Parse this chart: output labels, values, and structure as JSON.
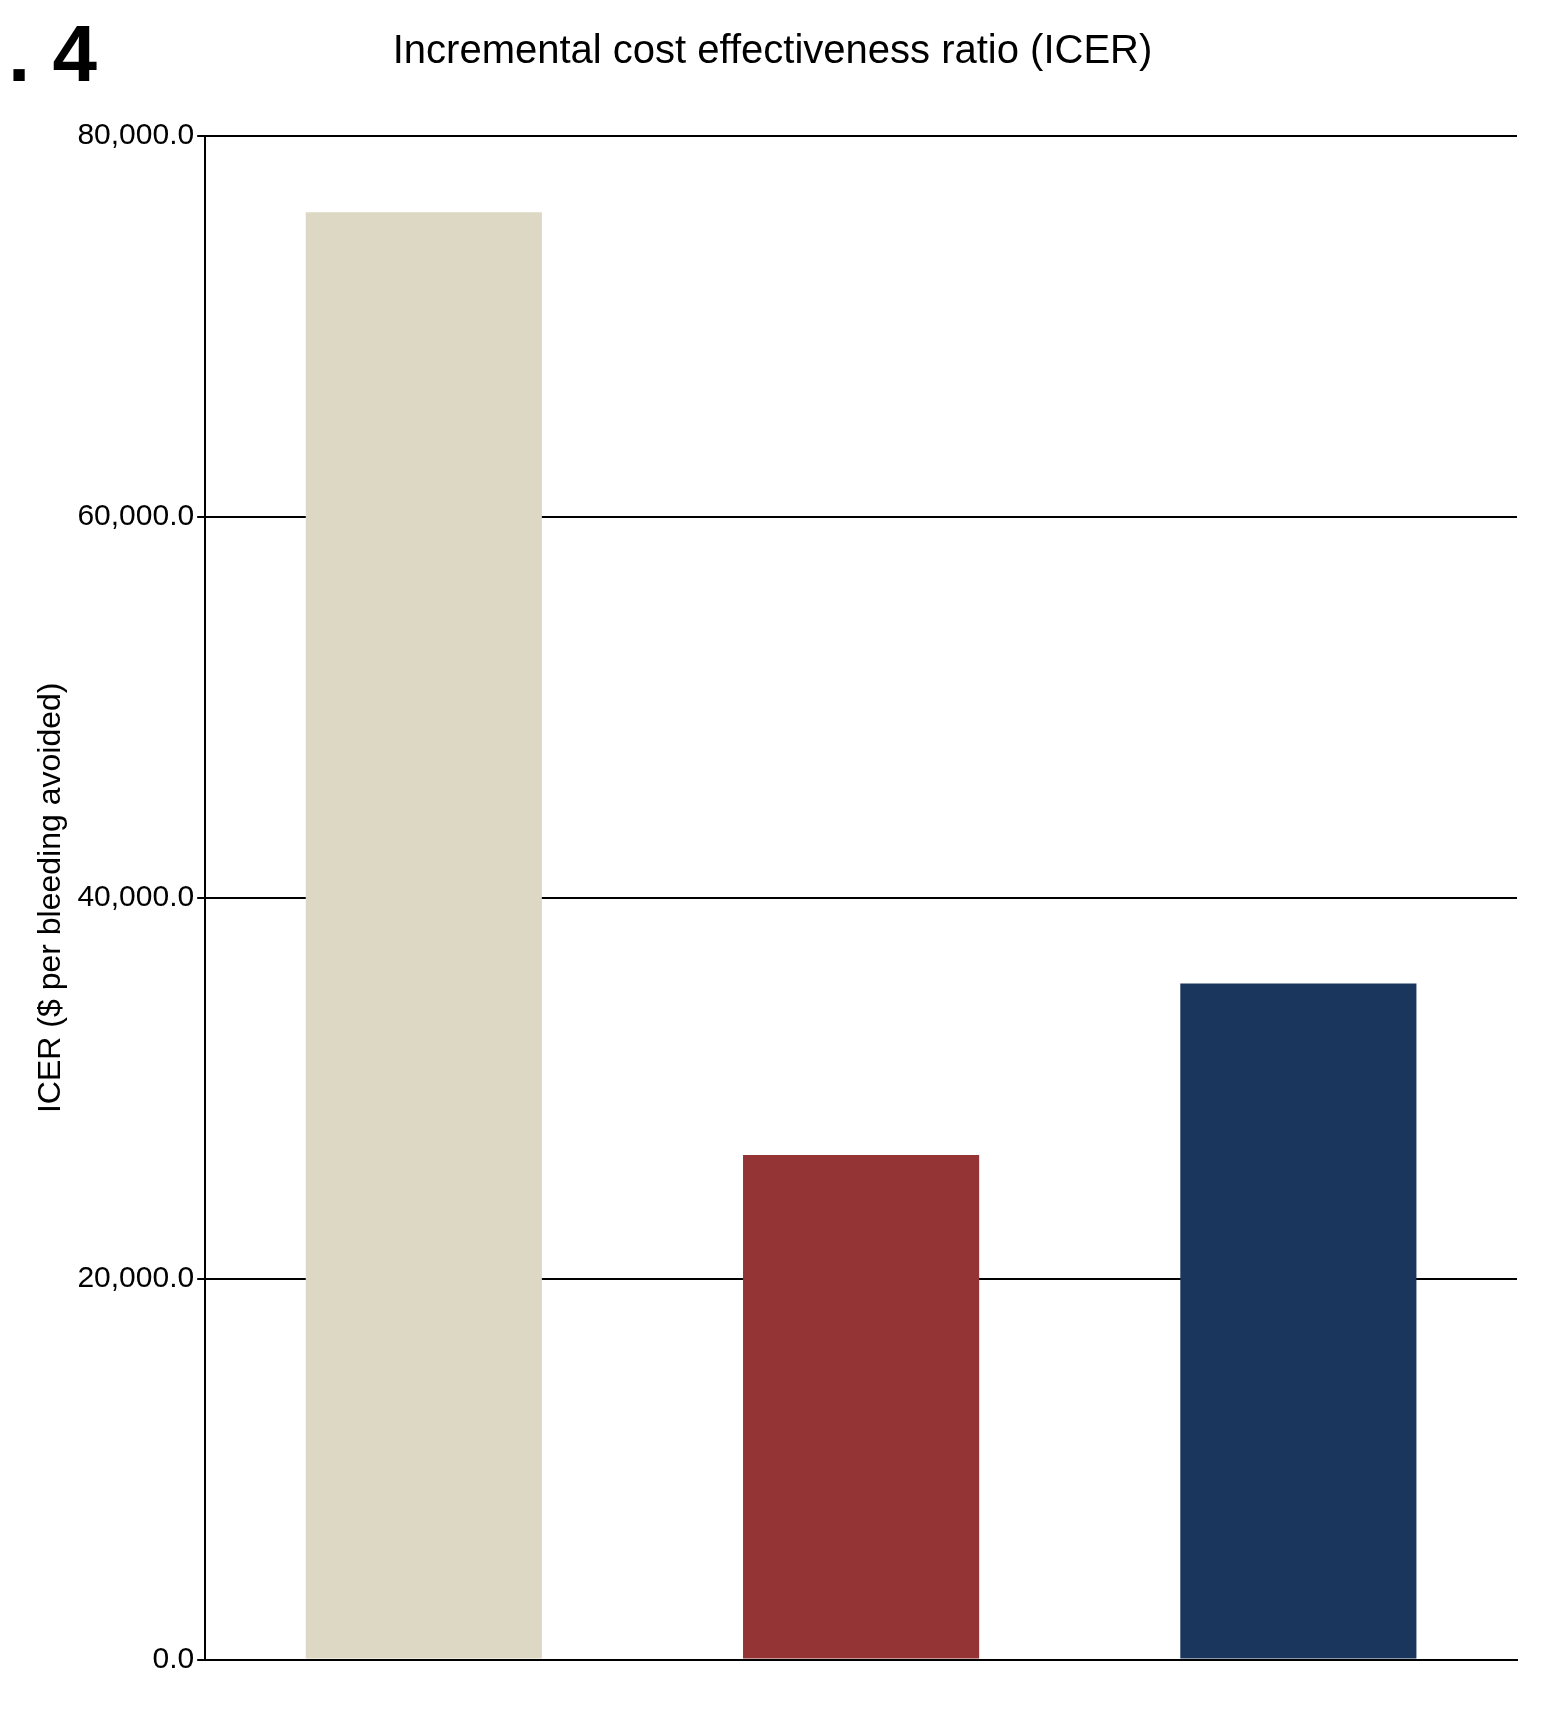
{
  "chart_data": {
    "type": "bar",
    "title": "Incremental cost effectiveness ratio (ICER)",
    "ylabel": "ICER ($ per bleeding avoided)",
    "annotations": [
      ". 4"
    ],
    "categories": [
      null,
      null,
      null
    ],
    "values": [
      76000,
      26500,
      35500
    ],
    "colors": [
      "#ddd8c4",
      "#943434",
      "#1a365d"
    ],
    "ylim": [
      0,
      80000
    ],
    "yticks": [
      {
        "value": 0,
        "label": "0.0"
      },
      {
        "value": 20000,
        "label": "20,000.0"
      },
      {
        "value": 40000,
        "label": "40,000.0"
      },
      {
        "value": 60000,
        "label": "60,000.0"
      },
      {
        "value": 80000,
        "label": "80,000.0"
      }
    ],
    "grid": "y",
    "legend": false
  }
}
